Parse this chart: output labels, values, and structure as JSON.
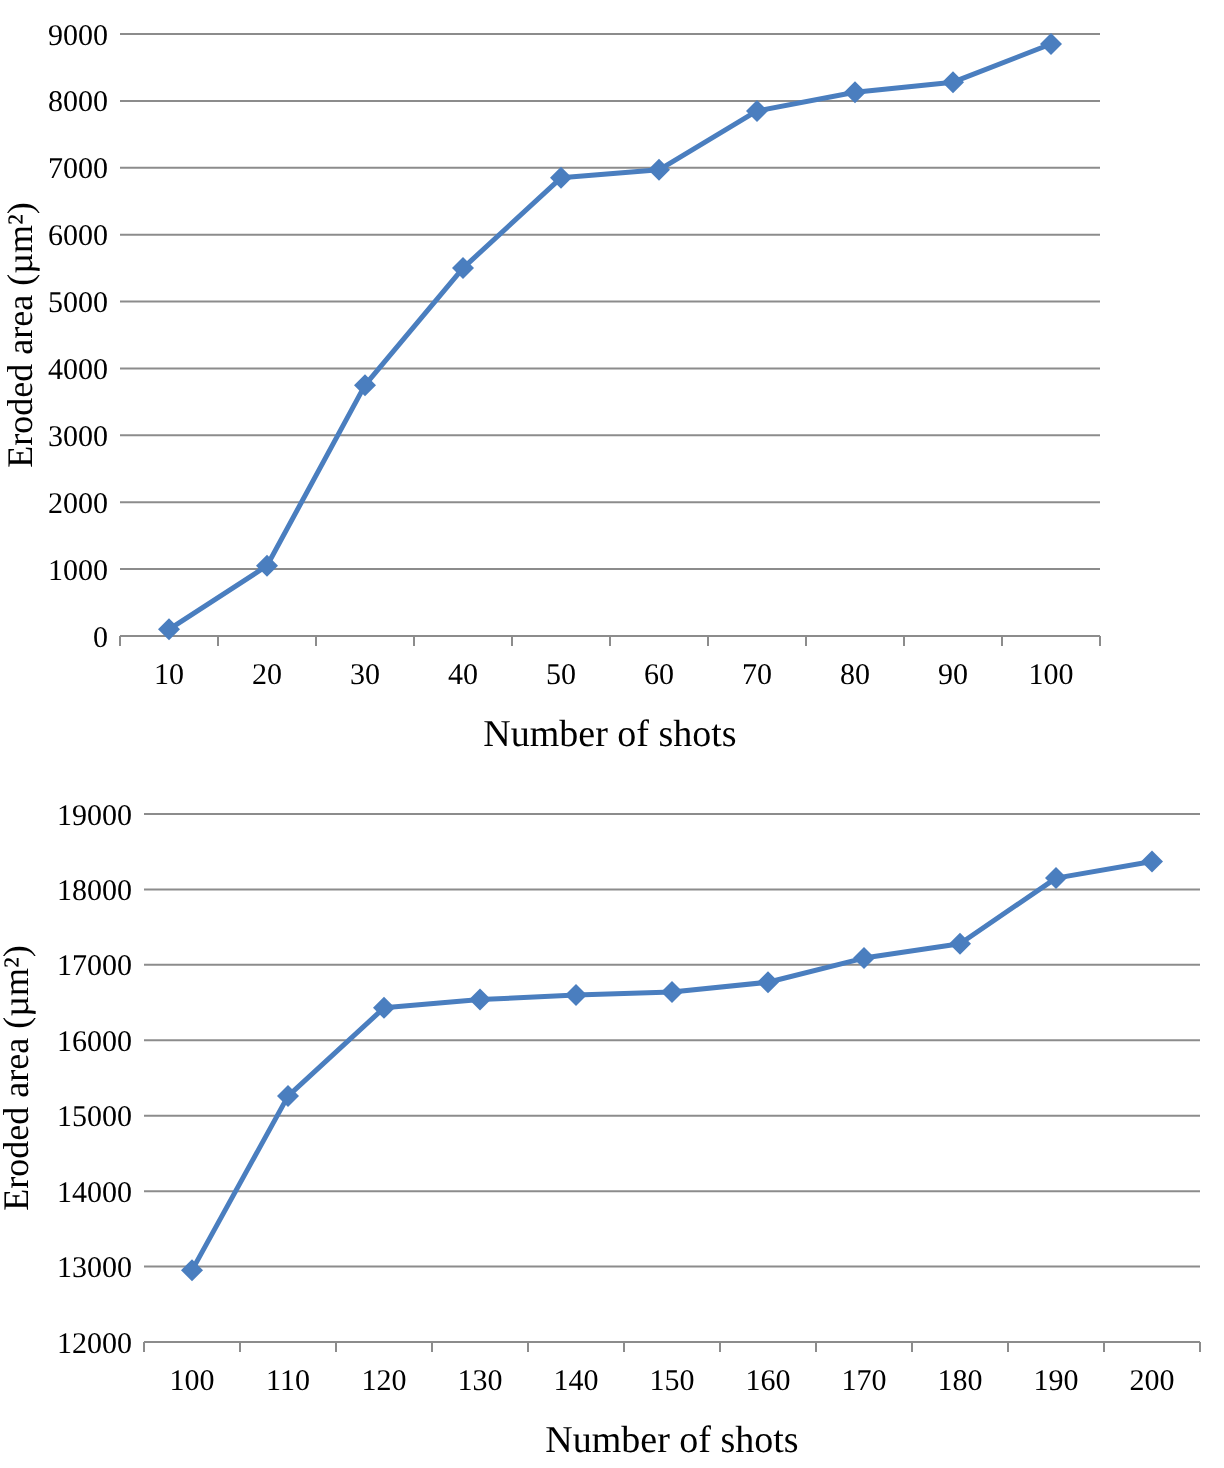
{
  "chart_data": [
    {
      "type": "line",
      "xlabel": "Number of shots",
      "ylabel": "Eroded area (µm²)",
      "categories": [
        "10",
        "20",
        "30",
        "40",
        "50",
        "60",
        "70",
        "80",
        "90",
        "100"
      ],
      "series": [
        {
          "color": "#4a7ebf",
          "values": [
            100,
            1050,
            3750,
            5500,
            6850,
            6970,
            7850,
            8130,
            8280,
            8850
          ]
        }
      ],
      "ylim": [
        0,
        9000
      ],
      "yticks": [
        0,
        1000,
        2000,
        3000,
        4000,
        5000,
        6000,
        7000,
        8000,
        9000
      ],
      "grid": "y",
      "marker": "diamond"
    },
    {
      "type": "line",
      "xlabel": "Number of shots",
      "ylabel": "Eroded area (µm²)",
      "categories": [
        "100",
        "110",
        "120",
        "130",
        "140",
        "150",
        "160",
        "170",
        "180",
        "190",
        "200"
      ],
      "series": [
        {
          "color": "#4a7ebf",
          "values": [
            12950,
            15260,
            16430,
            16540,
            16600,
            16640,
            16770,
            17090,
            17280,
            18150,
            18370
          ]
        }
      ],
      "ylim": [
        12000,
        19000
      ],
      "yticks": [
        12000,
        13000,
        14000,
        15000,
        16000,
        17000,
        18000,
        19000
      ],
      "grid": "y",
      "marker": "diamond"
    }
  ]
}
